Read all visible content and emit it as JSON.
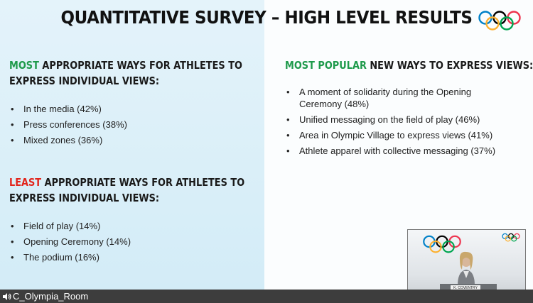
{
  "slide": {
    "title": "QUANTITATIVE SURVEY – HIGH LEVEL RESULTS",
    "most_appropriate": {
      "highlight": "MOST",
      "heading_line1": "APPROPRIATE WAYS FOR ATHLETES TO",
      "heading_line2": "EXPRESS INDIVIDUAL VIEWS:",
      "items": [
        "In the media (42%)",
        "Press conferences (38%)",
        "Mixed zones (36%)"
      ]
    },
    "least_appropriate": {
      "highlight": "LEAST",
      "heading_line1": "APPROPRIATE WAYS FOR ATHLETES TO",
      "heading_line2": "EXPRESS INDIVIDUAL VIEWS:",
      "items": [
        "Field of play (14%)",
        "Opening Ceremony (14%)",
        "The podium (16%)"
      ]
    },
    "most_popular": {
      "highlight": "MOST POPULAR",
      "heading_rest": "NEW WAYS TO EXPRESS VIEWS:",
      "items": [
        "A moment of solidarity during the Opening Ceremony (48%)",
        "Unified messaging on the field of play (46%)",
        "Area in Olympic Village to express views (41%)",
        "Athlete apparel with collective messaging (37%)"
      ]
    }
  },
  "video_feed": {
    "nameplate": "K. COVENTRY"
  },
  "room_bar": {
    "label": "C_Olympia_Room",
    "icon": "speaker-icon"
  },
  "colors": {
    "accent_green": "#1e9a4b",
    "accent_red": "#e2231a",
    "left_panel_bg": "#d8eef8",
    "room_bar_bg": "#3d3d3d",
    "ring_blue": "#0081c8",
    "ring_yellow": "#fcb131",
    "ring_black": "#000000",
    "ring_green": "#00a651",
    "ring_red": "#ee334e"
  }
}
